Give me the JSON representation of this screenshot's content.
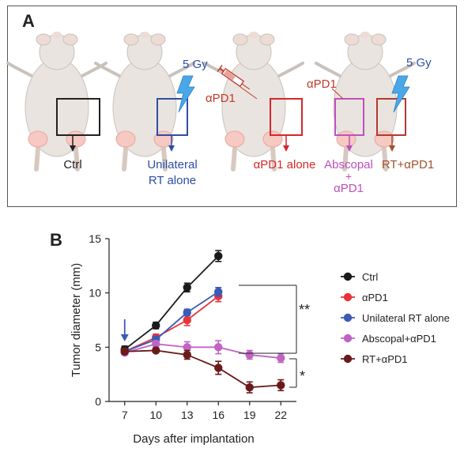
{
  "panel_a": {
    "letter": "A",
    "dose_labels": [
      "5 Gy",
      "5 Gy"
    ],
    "drug_labels": [
      "αPD1",
      "αPD1"
    ],
    "groups": [
      {
        "lines": [
          "Ctrl"
        ],
        "color": "#222222"
      },
      {
        "lines": [
          "Unilateral",
          "RT alone"
        ],
        "color": "#2e4ea6"
      },
      {
        "lines": [
          "αPD1 alone"
        ],
        "color": "#d62728"
      },
      {
        "lines": [
          "Abscopal",
          "+",
          "αPD1"
        ],
        "color": "#c04fbf"
      },
      {
        "lines": [
          "RT+αPD1"
        ],
        "color": "#a0522d"
      }
    ],
    "colors": {
      "box_ctrl": "#222222",
      "box_rt": "#2e4ea6",
      "box_pd1": "#d62728",
      "box_abscopal": "#c04fbf",
      "box_rtpd1": "#b03a2e",
      "lightning": "#4aa8e8",
      "dose_text": "#2e4ea6",
      "syringe": "#c0392b",
      "mouse": "#e9e4df",
      "mouse_outline": "#c9c2bb",
      "tumor": "#f6c9c2"
    }
  },
  "panel_b": {
    "letter": "B"
  },
  "chart_data": {
    "type": "line",
    "xlabel": "Days after implantation",
    "ylabel": "Tumor diameter (mm)",
    "x_ticks": [
      7,
      10,
      13,
      16,
      19,
      22
    ],
    "y_ticks": [
      0,
      5,
      10,
      15
    ],
    "xlim": [
      5.5,
      23.5
    ],
    "ylim": [
      0,
      15
    ],
    "series": [
      {
        "name": "Ctrl",
        "color": "#1a1a1a",
        "x": [
          7,
          10,
          13,
          16
        ],
        "y": [
          4.8,
          7.0,
          10.5,
          13.4
        ],
        "err": [
          0.3,
          0.3,
          0.4,
          0.5
        ]
      },
      {
        "name": "αPD1",
        "color": "#e8333a",
        "x": [
          7,
          10,
          13,
          16
        ],
        "y": [
          4.6,
          5.9,
          7.5,
          9.7
        ],
        "err": [
          0.2,
          0.3,
          0.5,
          0.5
        ]
      },
      {
        "name": "Unilateral RT alone",
        "color": "#3a5bb5",
        "x": [
          7,
          10,
          13,
          16
        ],
        "y": [
          4.6,
          5.7,
          8.2,
          10.1
        ],
        "err": [
          0.2,
          0.3,
          0.3,
          0.4
        ]
      },
      {
        "name": "Abscopal+αPD1",
        "color": "#c064c4",
        "x": [
          7,
          10,
          13,
          16,
          19,
          22
        ],
        "y": [
          4.5,
          5.3,
          5.0,
          5.0,
          4.3,
          4.0
        ],
        "err": [
          0.2,
          0.3,
          0.5,
          0.6,
          0.4,
          0.4
        ]
      },
      {
        "name": "RT+αPD1",
        "color": "#6b1a1a",
        "x": [
          7,
          10,
          13,
          16,
          19,
          22
        ],
        "y": [
          4.6,
          4.7,
          4.3,
          3.1,
          1.3,
          1.5
        ],
        "err": [
          0.2,
          0.2,
          0.4,
          0.6,
          0.5,
          0.5
        ]
      }
    ],
    "arrow_day": 7,
    "significance": [
      "**",
      "*"
    ],
    "legend_position": "right"
  }
}
